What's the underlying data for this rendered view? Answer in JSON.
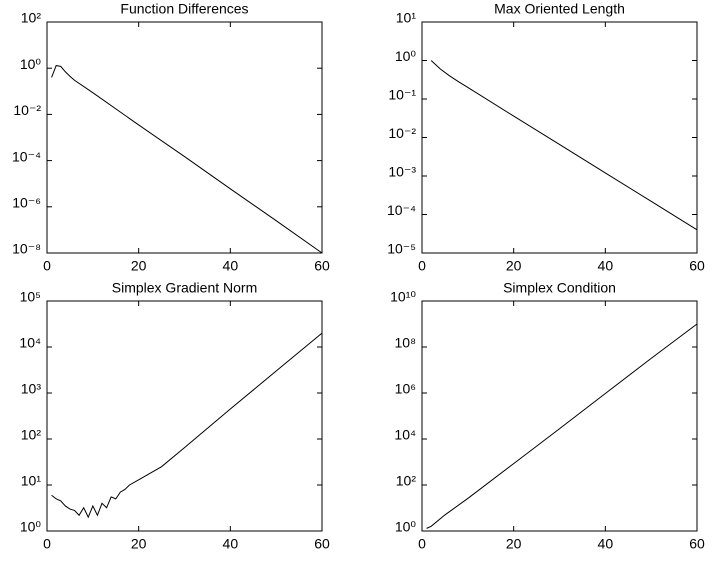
{
  "chart_data": [
    {
      "type": "line",
      "title": "Function Differences",
      "ylog": true,
      "color": "#000000",
      "x": [
        1,
        2,
        3,
        4,
        5,
        6,
        10,
        20,
        30,
        40,
        50,
        60
      ],
      "values": [
        0.4,
        1.3,
        1.2,
        0.7,
        0.45,
        0.3,
        0.087,
        0.0035,
        0.00015,
        6e-06,
        2.5e-07,
        1e-08
      ],
      "xlim": [
        0,
        60
      ],
      "xticks": [
        0,
        20,
        40,
        60
      ],
      "ylim": [
        1e-08,
        100
      ],
      "yticks": [
        {
          "value": 1e-08,
          "label": "10⁻⁸"
        },
        {
          "value": 1e-06,
          "label": "10⁻⁶"
        },
        {
          "value": 0.0001,
          "label": "10⁻⁴"
        },
        {
          "value": 0.01,
          "label": "10⁻²"
        },
        {
          "value": 1,
          "label": "10⁰"
        },
        {
          "value": 100,
          "label": "10²"
        }
      ]
    },
    {
      "type": "line",
      "title": "Max Oriented Length",
      "ylog": true,
      "color": "#000000",
      "x": [
        2,
        4,
        6,
        8,
        10,
        20,
        30,
        40,
        50,
        60
      ],
      "values": [
        1,
        0.6,
        0.4,
        0.28,
        0.2,
        0.036,
        0.0066,
        0.0012,
        0.00022,
        4e-05
      ],
      "xlim": [
        0,
        60
      ],
      "xticks": [
        0,
        20,
        40,
        60
      ],
      "ylim": [
        1e-05,
        10
      ],
      "yticks": [
        {
          "value": 1e-05,
          "label": "10⁻⁵"
        },
        {
          "value": 0.0001,
          "label": "10⁻⁴"
        },
        {
          "value": 0.001,
          "label": "10⁻³"
        },
        {
          "value": 0.01,
          "label": "10⁻²"
        },
        {
          "value": 0.1,
          "label": "10⁻¹"
        },
        {
          "value": 1,
          "label": "10⁰"
        },
        {
          "value": 10,
          "label": "10¹"
        }
      ]
    },
    {
      "type": "line",
      "title": "Simplex Gradient Norm",
      "ylog": true,
      "color": "#000000",
      "x": [
        1,
        2,
        3,
        4,
        5,
        6,
        7,
        8,
        9,
        10,
        11,
        12,
        13,
        14,
        15,
        16,
        17,
        18,
        20,
        25,
        30,
        40,
        50,
        60
      ],
      "values": [
        6,
        5,
        4.5,
        3.5,
        3,
        2.8,
        2.2,
        3.2,
        2,
        3.5,
        2.2,
        4,
        3.2,
        5.5,
        5,
        7,
        8,
        10,
        13,
        25,
        65,
        450,
        3000,
        20000
      ],
      "xlim": [
        0,
        60
      ],
      "xticks": [
        0,
        20,
        40,
        60
      ],
      "ylim": [
        1,
        100000
      ],
      "yticks": [
        {
          "value": 1,
          "label": "10⁰"
        },
        {
          "value": 10,
          "label": "10¹"
        },
        {
          "value": 100,
          "label": "10²"
        },
        {
          "value": 1000,
          "label": "10³"
        },
        {
          "value": 10000,
          "label": "10⁴"
        },
        {
          "value": 100000,
          "label": "10⁵"
        }
      ]
    },
    {
      "type": "line",
      "title": "Simplex Condition",
      "ylog": true,
      "color": "#000000",
      "x": [
        1,
        2,
        5,
        10,
        20,
        30,
        40,
        50,
        60
      ],
      "values": [
        1.3,
        1.6,
        5,
        26,
        850,
        28000,
        950000,
        32000000,
        1000000000
      ],
      "xlim": [
        0,
        60
      ],
      "xticks": [
        0,
        20,
        40,
        60
      ],
      "ylim": [
        1,
        10000000000
      ],
      "yticks": [
        {
          "value": 1,
          "label": "10⁰"
        },
        {
          "value": 100,
          "label": "10²"
        },
        {
          "value": 10000,
          "label": "10⁴"
        },
        {
          "value": 1000000,
          "label": "10⁶"
        },
        {
          "value": 100000000,
          "label": "10⁸"
        },
        {
          "value": 10000000000,
          "label": "10¹⁰"
        }
      ]
    }
  ]
}
